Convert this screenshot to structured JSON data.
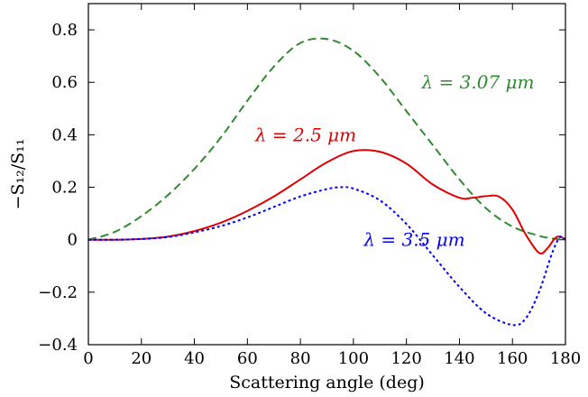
{
  "chart_data": {
    "type": "line",
    "title": "",
    "xlabel": "Scattering angle (deg)",
    "ylabel": "−S₁₂/S₁₁",
    "xlim": [
      0,
      180
    ],
    "ylim": [
      -0.4,
      0.9
    ],
    "x_ticks": [
      0,
      20,
      40,
      60,
      80,
      100,
      120,
      140,
      160,
      180
    ],
    "y_ticks": [
      -0.4,
      -0.2,
      0,
      0.2,
      0.4,
      0.6,
      0.8
    ],
    "x_tick_labels": [
      "0",
      "20",
      "40",
      "60",
      "80",
      "100",
      "120",
      "140",
      "160",
      "180"
    ],
    "y_tick_labels": [
      "−0.4",
      "−0.2",
      "0",
      "0.2",
      "0.4",
      "0.6",
      "0.8"
    ],
    "grid": false,
    "legend": "none (inline annotations)",
    "series": [
      {
        "name": "λ = 3.07 μm",
        "color": "#2e8b2e",
        "dash": "dashed",
        "x": [
          0,
          10,
          20,
          30,
          40,
          50,
          60,
          70,
          80,
          90,
          100,
          110,
          120,
          130,
          140,
          150,
          160,
          170,
          175,
          180
        ],
        "y": [
          0,
          0.03,
          0.09,
          0.17,
          0.27,
          0.39,
          0.53,
          0.66,
          0.75,
          0.765,
          0.72,
          0.62,
          0.49,
          0.36,
          0.23,
          0.12,
          0.05,
          0.015,
          0.005,
          0
        ]
      },
      {
        "name": "λ = 2.5 μm",
        "color": "#e00000",
        "dash": "solid",
        "x": [
          0,
          10,
          20,
          30,
          40,
          50,
          60,
          70,
          80,
          90,
          100,
          110,
          120,
          130,
          140,
          145,
          150,
          155,
          160,
          165,
          170,
          173,
          176,
          178,
          180
        ],
        "y": [
          0,
          0,
          0.003,
          0.012,
          0.033,
          0.065,
          0.11,
          0.165,
          0.23,
          0.295,
          0.338,
          0.335,
          0.29,
          0.21,
          0.16,
          0.16,
          0.166,
          0.164,
          0.115,
          0.02,
          -0.05,
          -0.035,
          0.005,
          0.012,
          0
        ]
      },
      {
        "name": "λ = 3.5 μm",
        "color": "#0000ff",
        "dash": "dotted",
        "x": [
          0,
          10,
          20,
          30,
          40,
          50,
          60,
          70,
          80,
          90,
          95,
          100,
          110,
          120,
          130,
          140,
          150,
          160,
          165,
          170,
          175,
          178,
          180
        ],
        "y": [
          0,
          0,
          0.003,
          0.01,
          0.028,
          0.052,
          0.085,
          0.125,
          0.165,
          0.193,
          0.2,
          0.195,
          0.15,
          0.06,
          -0.06,
          -0.18,
          -0.28,
          -0.325,
          -0.3,
          -0.2,
          -0.05,
          0.01,
          0
        ]
      }
    ],
    "annotations": [
      {
        "text": "λ = 3.07 μm",
        "series": 0,
        "x": 147,
        "y": 0.6
      },
      {
        "text": "λ = 2.5 μm",
        "series": 1,
        "x": 82,
        "y": 0.4
      },
      {
        "text": "λ = 3.5 μm",
        "series": 2,
        "x": 123,
        "y": 0
      }
    ]
  }
}
